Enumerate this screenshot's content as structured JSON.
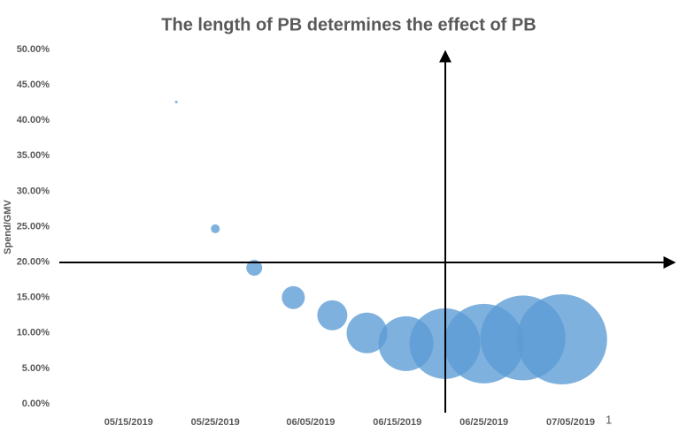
{
  "chart_data": {
    "type": "bubble",
    "title": "The length of PB determines the effect of PB",
    "y_label": "Spend/GMV",
    "annotation": "1",
    "color": "#5b9bd5",
    "x": [
      140.5,
      145,
      149.5,
      154,
      158.5,
      162.5,
      167,
      171.5,
      176,
      180.5,
      185
    ],
    "values": [
      42.6,
      24.7,
      19.2,
      15.0,
      12.5,
      10.0,
      8.5,
      8.5,
      8.5,
      9.3,
      9.1
    ],
    "sizes": [
      1.5,
      5,
      9,
      13,
      17,
      23,
      31,
      40,
      45,
      48,
      51
    ],
    "xlim": [
      127,
      198
    ],
    "xticks": [
      {
        "value": 135,
        "label": "05/15/2019"
      },
      {
        "value": 145,
        "label": "05/25/2019"
      },
      {
        "value": 156,
        "label": "06/05/2019"
      },
      {
        "value": 166,
        "label": "06/15/2019"
      },
      {
        "value": 176,
        "label": "06/25/2019"
      },
      {
        "value": 186,
        "label": "07/05/2019"
      }
    ],
    "ylim": [
      0,
      50
    ],
    "yticks": [
      {
        "value": 0,
        "label": "0.00%"
      },
      {
        "value": 5,
        "label": "5.00%"
      },
      {
        "value": 10,
        "label": "10.00%"
      },
      {
        "value": 15,
        "label": "15.00%"
      },
      {
        "value": 20,
        "label": "20.00%"
      },
      {
        "value": 25,
        "label": "25.00%"
      },
      {
        "value": 30,
        "label": "30.00%"
      },
      {
        "value": 35,
        "label": "35.00%"
      },
      {
        "value": 40,
        "label": "40.00%"
      },
      {
        "value": 45,
        "label": "45.00%"
      },
      {
        "value": 50,
        "label": "50.00%"
      }
    ]
  }
}
